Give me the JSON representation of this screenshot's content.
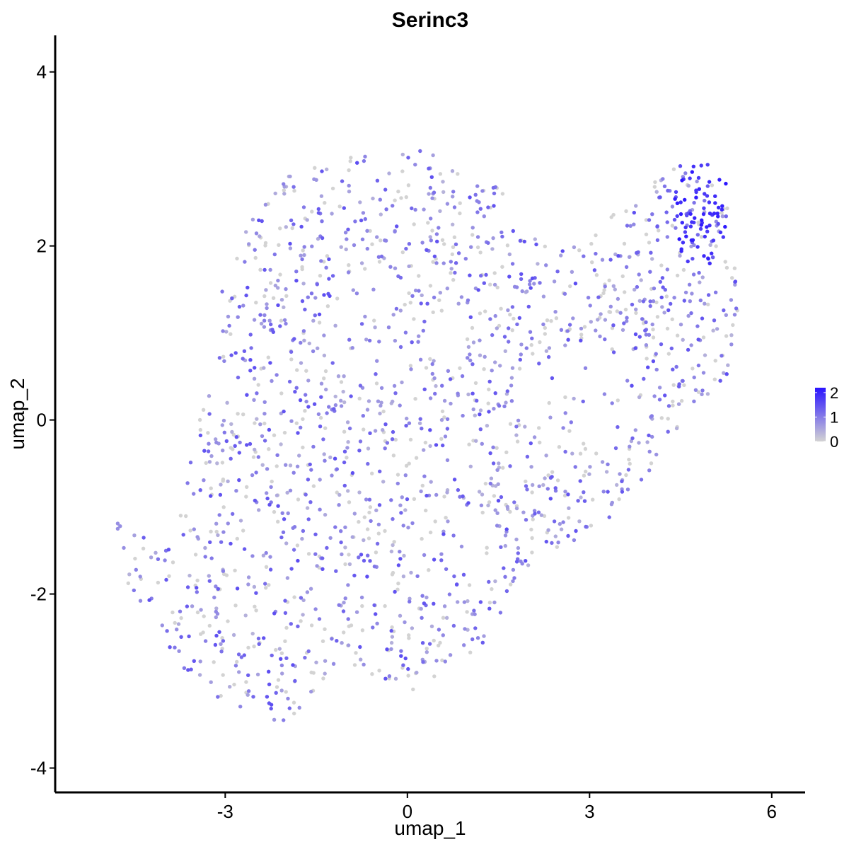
{
  "chart_data": {
    "type": "scatter",
    "title": "Serinc3",
    "xlabel": "umap_1",
    "ylabel": "umap_2",
    "xlim": [
      -5.8,
      6.55
    ],
    "ylim": [
      -4.28,
      4.42
    ],
    "x_ticks": [
      -3,
      0,
      3,
      6
    ],
    "y_ticks": [
      -4,
      -2,
      0,
      2,
      4
    ],
    "x_tick_labels": [
      "-3",
      "0",
      "3",
      "6"
    ],
    "y_tick_labels": [
      "-4",
      "-2",
      "0",
      "2",
      "4"
    ],
    "grid": false,
    "legend": {
      "placement": "right",
      "kind": "colorbar",
      "ticks": [
        0,
        1,
        2
      ],
      "tick_labels": [
        "0",
        "1",
        "2"
      ],
      "range": [
        0,
        2.2
      ],
      "color_low": "#d3d3d3",
      "color_high": "#2a14ff"
    },
    "point_generation": {
      "total_cells": 1850,
      "body_polygon": [
        [
          -4.6,
          -1.3
        ],
        [
          -3.9,
          -1.2
        ],
        [
          -3.3,
          0.3
        ],
        [
          -3.1,
          1.5
        ],
        [
          -2.6,
          2.3
        ],
        [
          -1.9,
          2.85
        ],
        [
          -0.9,
          3.05
        ],
        [
          0.2,
          3.15
        ],
        [
          0.9,
          2.9
        ],
        [
          1.5,
          2.7
        ],
        [
          1.9,
          2.2
        ],
        [
          2.4,
          1.95
        ],
        [
          2.9,
          2.2
        ],
        [
          3.7,
          2.5
        ],
        [
          4.5,
          3.0
        ],
        [
          5.0,
          2.75
        ],
        [
          5.45,
          2.3
        ],
        [
          5.45,
          1.2
        ],
        [
          5.3,
          0.55
        ],
        [
          4.8,
          0.05
        ],
        [
          4.1,
          -0.5
        ],
        [
          3.6,
          -1.0
        ],
        [
          2.6,
          -1.5
        ],
        [
          1.6,
          -2.2
        ],
        [
          1.0,
          -2.8
        ],
        [
          0.3,
          -3.1
        ],
        [
          -0.5,
          -3.1
        ],
        [
          -1.3,
          -2.9
        ],
        [
          -2.0,
          -3.5
        ],
        [
          -2.5,
          -3.4
        ],
        [
          -3.5,
          -3.1
        ],
        [
          -4.2,
          -2.3
        ],
        [
          -4.6,
          -1.9
        ]
      ],
      "hot_cluster": {
        "center": [
          4.85,
          2.35
        ],
        "radius_x": 0.5,
        "radius_y": 0.6,
        "count": 70
      },
      "isolated_points": [
        [
          -4.77,
          -1.25
        ],
        [
          -4.73,
          -1.22
        ],
        [
          -4.77,
          -1.19
        ],
        [
          -4.67,
          -1.47
        ],
        [
          -4.4,
          -1.8
        ]
      ],
      "seed": 42
    }
  }
}
